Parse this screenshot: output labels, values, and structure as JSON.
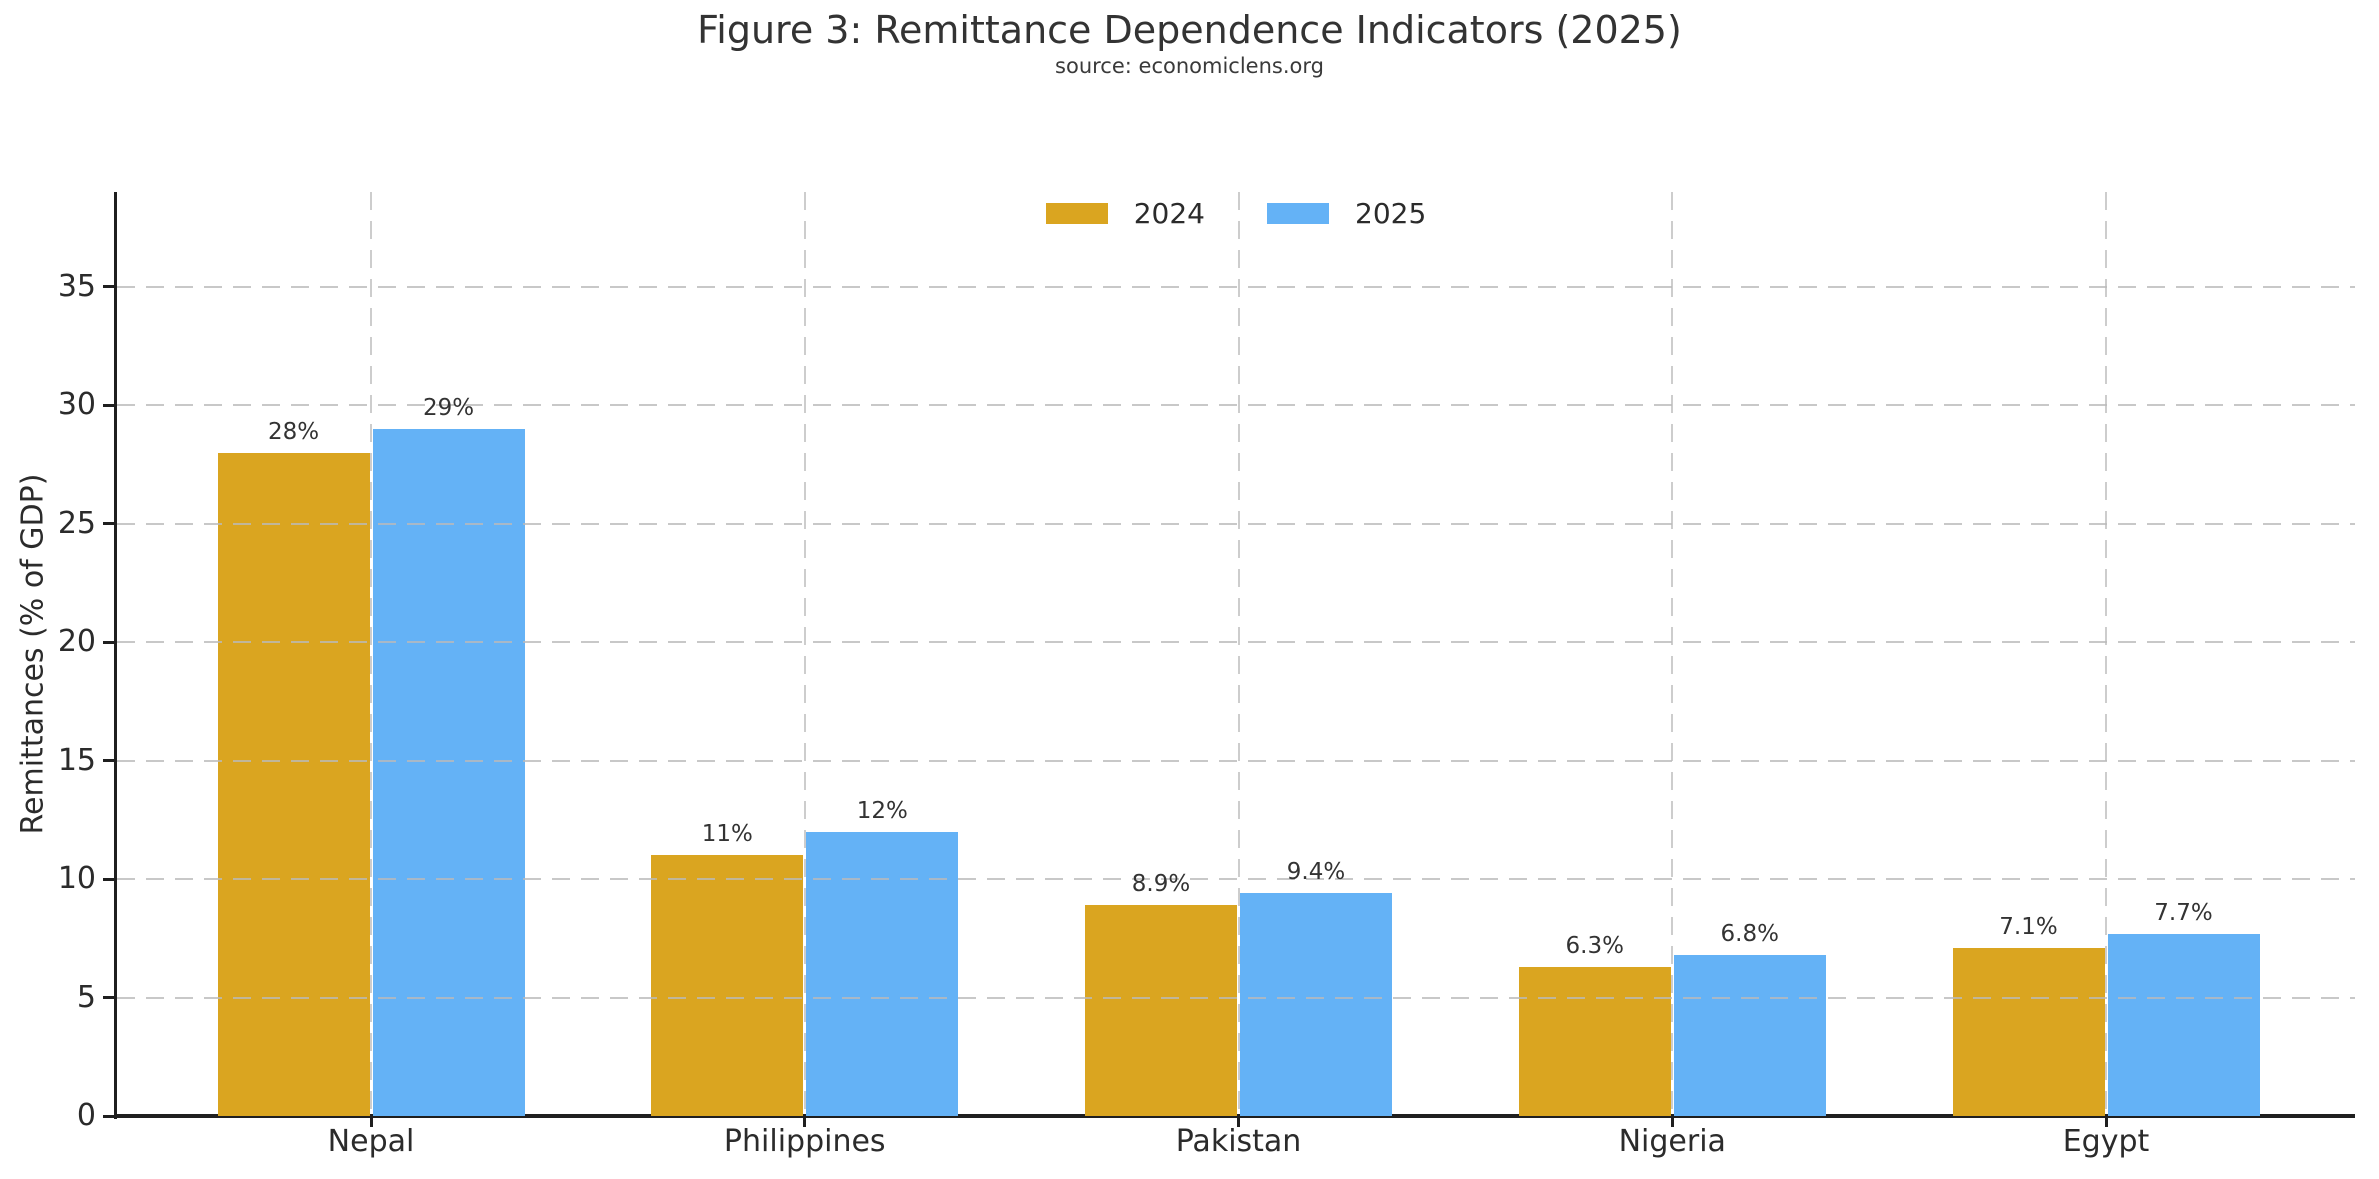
{
  "figure": {
    "title": "Figure 3: Remittance Dependence Indicators (2025)",
    "subtitle": "source: economiclens.org"
  },
  "chart_data": {
    "type": "bar",
    "title": "Figure 3: Remittance Dependence Indicators (2025)",
    "subtitle": "source: economiclens.org",
    "categories": [
      "Nepal",
      "Philippines",
      "Pakistan",
      "Nigeria",
      "Egypt"
    ],
    "series": [
      {
        "name": "2024",
        "color": "#DAA520",
        "values": [
          28,
          11,
          8.9,
          6.3,
          7.1
        ],
        "labels": [
          "28%",
          "11%",
          "8.9%",
          "6.3%",
          "7.1%"
        ]
      },
      {
        "name": "2025",
        "color": "#64B2F6",
        "values": [
          29,
          12,
          9.4,
          6.8,
          7.7
        ],
        "labels": [
          "29%",
          "12%",
          "9.4%",
          "6.8%",
          "7.7%"
        ]
      }
    ],
    "xlabel": "",
    "ylabel": "Remittances (% of GDP)",
    "yticks": [
      0,
      5,
      10,
      15,
      20,
      25,
      30,
      35
    ],
    "ytick_labels": [
      "0",
      "5",
      "10",
      "15",
      "20",
      "25",
      "30",
      "35"
    ],
    "ylim": [
      0,
      39
    ],
    "grid": true,
    "grid_style": "dashed",
    "legend_position": "upper center",
    "colors": {
      "grid": "#cdcdcd",
      "axis": "#1f1f1f",
      "text": "#2b2b2b"
    }
  }
}
